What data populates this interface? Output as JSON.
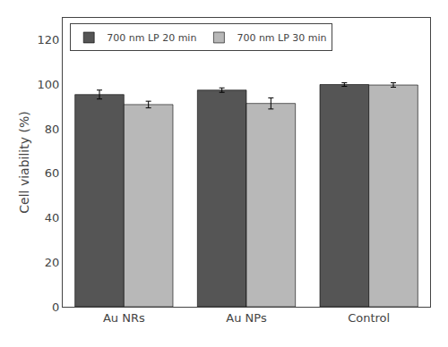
{
  "chart_data": {
    "type": "bar",
    "categories": [
      "Au NRs",
      "Au NPs",
      "Control"
    ],
    "series": [
      {
        "name": "700 nm LP 20 min",
        "color": "#555555",
        "values": [
          95.5,
          97.5,
          100.0
        ],
        "errors": [
          2.0,
          1.0,
          0.8
        ]
      },
      {
        "name": "700 nm LP 30 min",
        "color": "#b8b8b8",
        "values": [
          91.0,
          91.5,
          99.8
        ],
        "errors": [
          1.5,
          2.5,
          1.0
        ]
      }
    ],
    "ylabel": "Cell viability (%)",
    "ylim": [
      0,
      130
    ],
    "yticks": [
      0,
      20,
      40,
      60,
      80,
      100,
      120
    ],
    "grid": false,
    "legend": "upper left"
  }
}
